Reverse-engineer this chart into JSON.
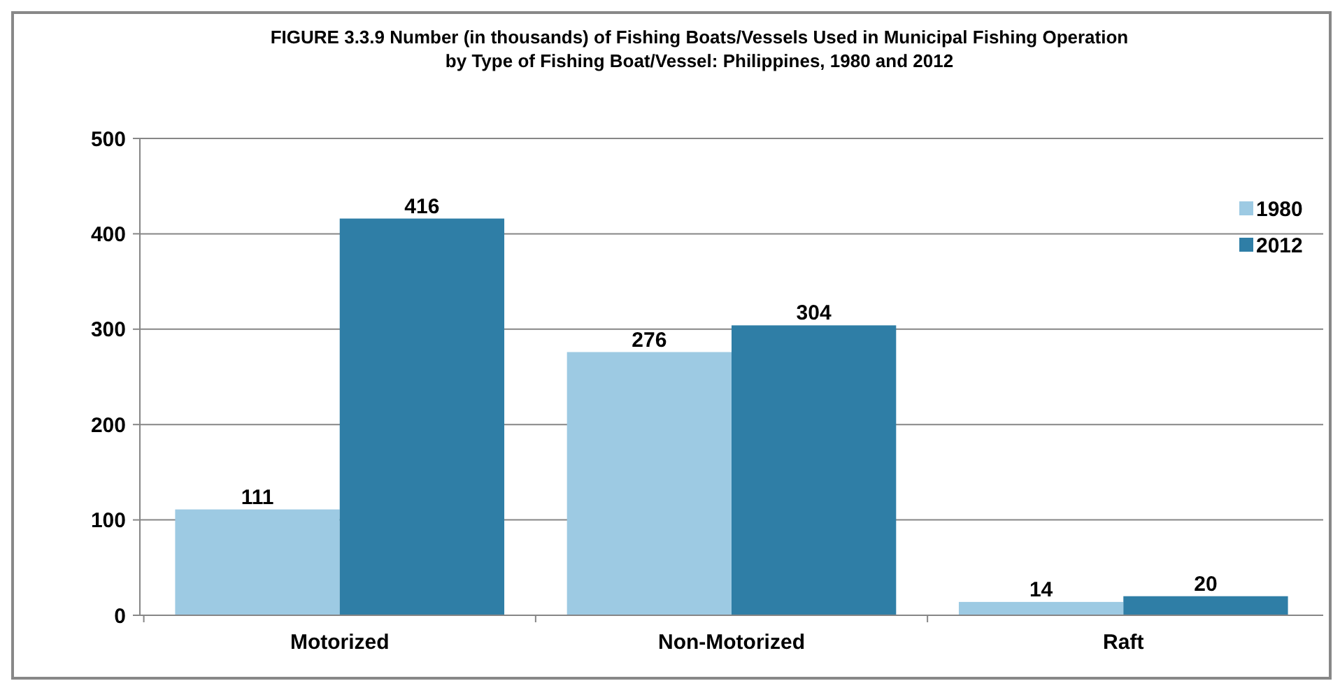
{
  "chart_data": {
    "type": "bar",
    "title": "FIGURE 3.3.9  Number (in thousands) of Fishing Boats/Vessels Used in Municipal Fishing Operation\nby Type of Fishing Boat/Vessel: Philippines, 1980 and 2012",
    "categories": [
      "Motorized",
      "Non-Motorized",
      "Raft"
    ],
    "series": [
      {
        "name": "1980",
        "color": "#9dcae3",
        "values": [
          111,
          276,
          14
        ]
      },
      {
        "name": "2012",
        "color": "#2f7ea6",
        "values": [
          416,
          304,
          20
        ]
      }
    ],
    "ylim": [
      0,
      500
    ],
    "yticks": [
      0,
      100,
      200,
      300,
      400,
      500
    ],
    "grid": "y",
    "legend": "top right",
    "data_labels": true
  }
}
